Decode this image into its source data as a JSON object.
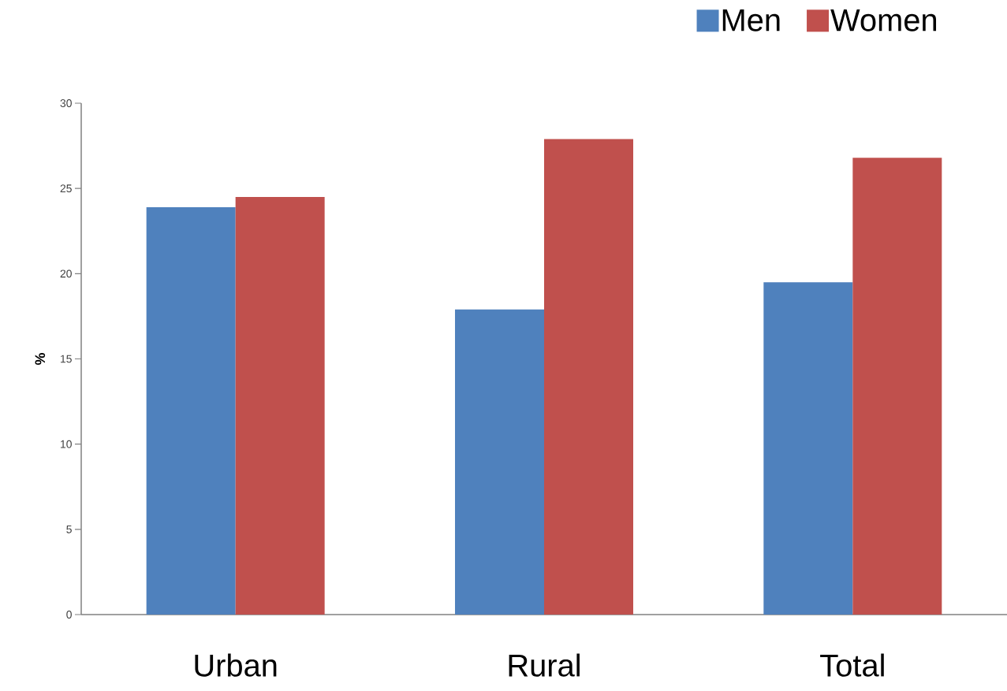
{
  "chart_data": {
    "type": "bar",
    "ylabel": "%",
    "categories": [
      "Urban",
      "Rural",
      "Total"
    ],
    "series": [
      {
        "name": "Men",
        "color": "#4f81bd",
        "values": [
          23.9,
          17.9,
          19.5
        ]
      },
      {
        "name": "Women",
        "color": "#c0504d",
        "values": [
          24.5,
          27.9,
          26.8
        ]
      }
    ],
    "ylim": [
      0,
      30
    ],
    "yticks": [
      0,
      5,
      10,
      15,
      20,
      25,
      30
    ],
    "legend": "top right"
  }
}
